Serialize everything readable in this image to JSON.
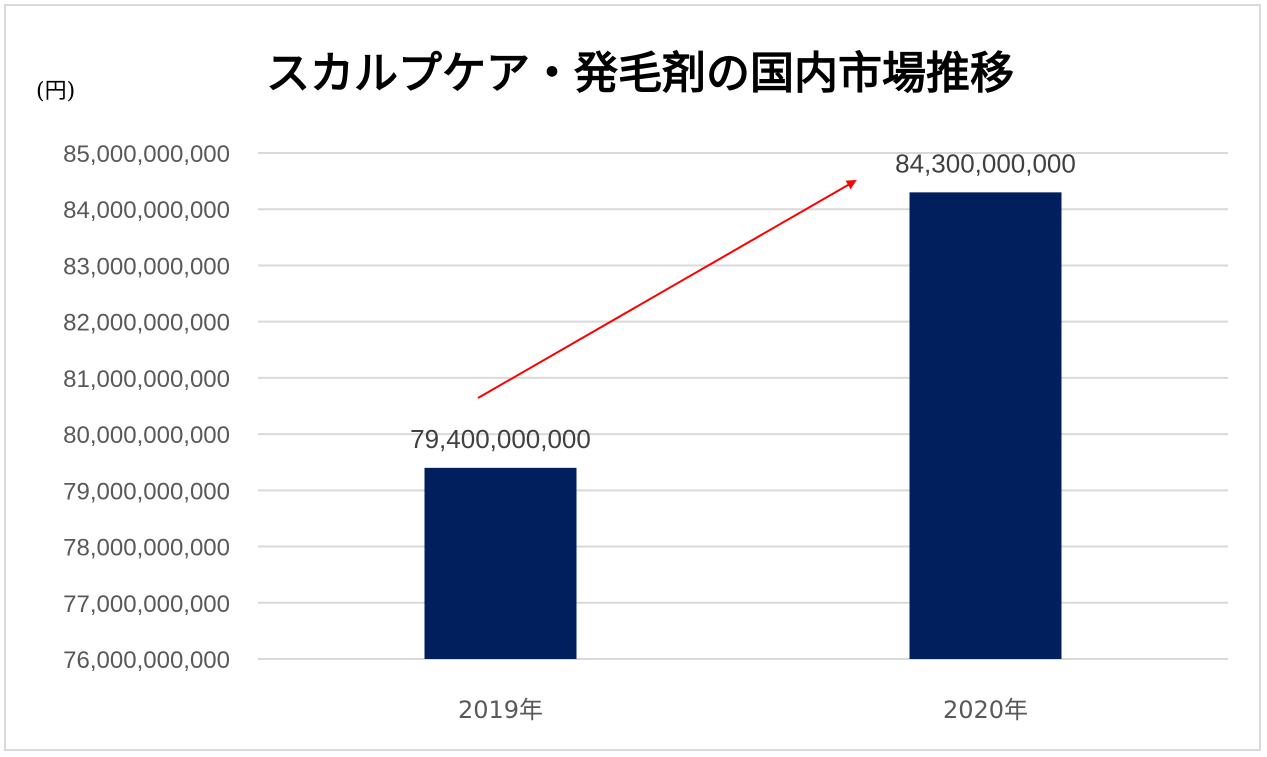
{
  "chart_data": {
    "type": "bar",
    "title": "スカルプケア・発毛剤の国内市場推移",
    "unit_label": "(円)",
    "categories": [
      "2019年",
      "2020年"
    ],
    "values": [
      79400000000,
      84300000000
    ],
    "data_labels": [
      "79,400,000,000",
      "84,300,000,000"
    ],
    "ylim": [
      76000000000,
      85000000000
    ],
    "yticks": [
      76000000000,
      77000000000,
      78000000000,
      79000000000,
      80000000000,
      81000000000,
      82000000000,
      83000000000,
      84000000000,
      85000000000
    ],
    "ytick_labels": [
      "76,000,000,000",
      "77,000,000,000",
      "78,000,000,000",
      "79,000,000,000",
      "80,000,000,000",
      "81,000,000,000",
      "82,000,000,000",
      "83,000,000,000",
      "84,000,000,000",
      "85,000,000,000"
    ],
    "grid": true,
    "bar_color": "#001f5c",
    "gridline_color": "#d9d9d9",
    "annotation": {
      "type": "arrow",
      "direction": "up",
      "color": "#ff0000"
    }
  }
}
